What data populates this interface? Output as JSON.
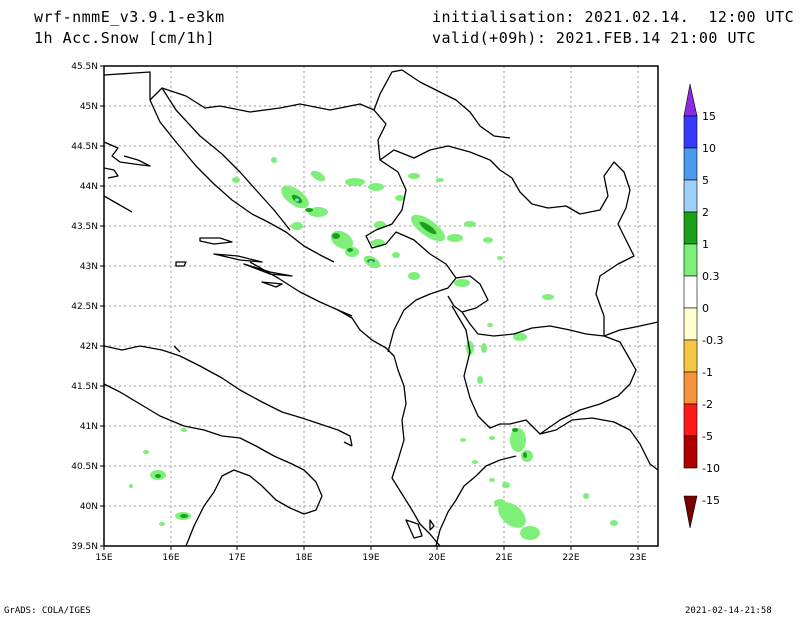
{
  "header": {
    "model": "wrf-nmmE_v3.9.1-e3km",
    "variable": "1h Acc.Snow [cm/1h]",
    "init": "initialisation: 2021.02.14.  12:00 UTC",
    "valid": "valid(+09h): 2021.FEB.14 21:00 UTC"
  },
  "footer": {
    "left": "GrADS: COLA/IGES",
    "right": "2021-02-14-21:58"
  },
  "map": {
    "lon_range": [
      15,
      23.3
    ],
    "lat_range": [
      39.5,
      45.5
    ],
    "lat_ticks": [
      "45.5N",
      "45N",
      "44.5N",
      "44N",
      "43.5N",
      "43N",
      "42.5N",
      "42N",
      "41.5N",
      "41N",
      "40.5N",
      "40N",
      "39.5N"
    ],
    "lon_ticks": [
      "15E",
      "16E",
      "17E",
      "18E",
      "19E",
      "20E",
      "21E",
      "22E",
      "23E"
    ]
  },
  "colorbar": {
    "labels": [
      "15",
      "10",
      "5",
      "2",
      "1",
      "0.3",
      "0",
      "-0.3",
      "-1",
      "-2",
      "-5",
      "-10",
      "-15"
    ],
    "colors": [
      "#8a2be2",
      "#3a3aff",
      "#4b9cf0",
      "#9fd0f5",
      "#1aa01a",
      "#7ef07a",
      "#ffffff",
      "#ffffd0",
      "#f5c842",
      "#f5943a",
      "#ff1a1a",
      "#b00000",
      "#7a0000"
    ]
  }
}
